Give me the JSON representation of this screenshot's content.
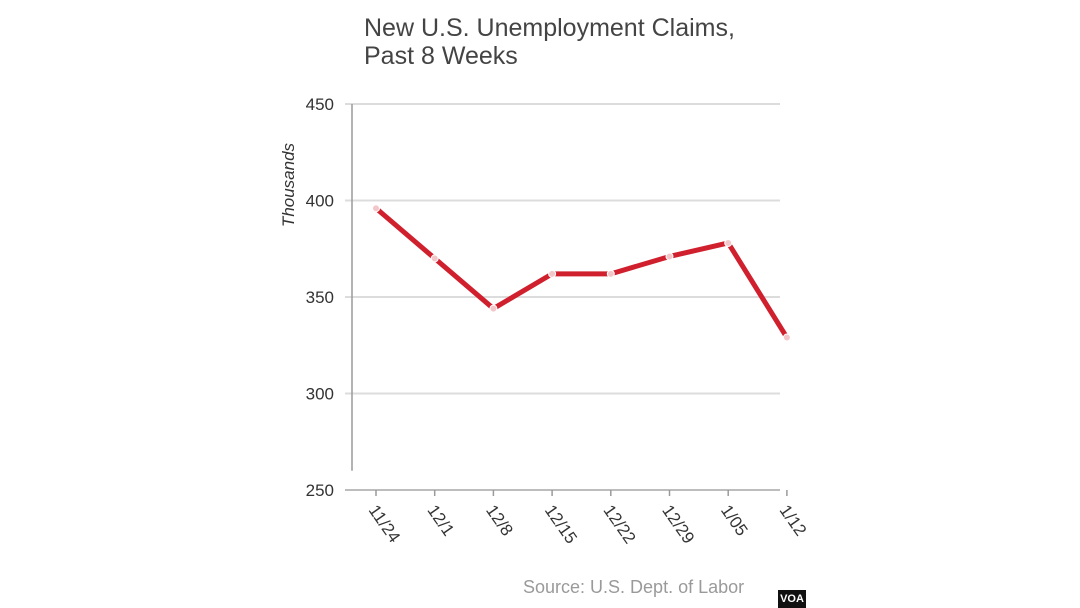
{
  "title_lines": [
    "New U.S. Unemployment Claims,",
    "Past 8 Weeks"
  ],
  "source": "Source: U.S. Dept. of Labor",
  "badge": "VOA",
  "chart_data": {
    "type": "line",
    "title": "New U.S. Unemployment Claims, Past 8 Weeks",
    "xlabel": "",
    "ylabel": "Thousands",
    "categories": [
      "11/24",
      "12/1",
      "12/8",
      "12/15",
      "12/22",
      "12/29",
      "1/05",
      "1/12"
    ],
    "series": [
      {
        "values": [
          396,
          370,
          344,
          362,
          362,
          371,
          378,
          329
        ],
        "color": "#d0202e"
      }
    ],
    "ylim": [
      250,
      450
    ],
    "yticks": [
      250,
      300,
      350,
      400,
      450
    ],
    "grid": true,
    "legend": "none"
  }
}
